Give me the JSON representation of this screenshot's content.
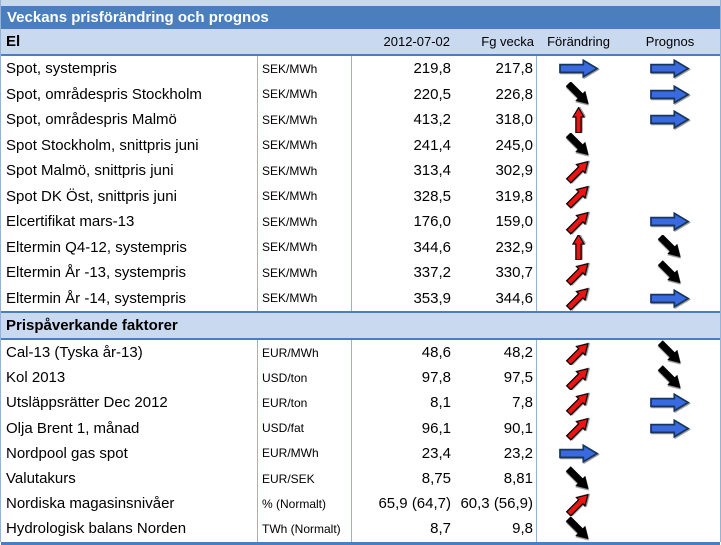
{
  "title": "Veckans prisförändring och prognos",
  "header": {
    "date": "2012-07-02",
    "prev_week": "Fg vecka",
    "change": "Förändring",
    "forecast": "Prognos"
  },
  "sections": [
    {
      "label": "El",
      "rows": [
        {
          "name": "Spot, systempris",
          "unit": "SEK/MWh",
          "current": "219,8",
          "prev": "217,8",
          "change": "flat",
          "forecast": "flat"
        },
        {
          "name": "Spot, områdespris Stockholm",
          "unit": "SEK/MWh",
          "current": "220,5",
          "prev": "226,8",
          "change": "down",
          "forecast": "flat"
        },
        {
          "name": "Spot, områdespris Malmö",
          "unit": "SEK/MWh",
          "current": "413,2",
          "prev": "318,0",
          "change": "up-strong",
          "forecast": "flat"
        },
        {
          "name": "Spot Stockholm, snittpris juni",
          "unit": "SEK/MWh",
          "current": "241,4",
          "prev": "245,0",
          "change": "down",
          "forecast": "none"
        },
        {
          "name": "Spot Malmö, snittpris juni",
          "unit": "SEK/MWh",
          "current": "313,4",
          "prev": "302,9",
          "change": "up",
          "forecast": "none"
        },
        {
          "name": "Spot DK Öst, snittpris juni",
          "unit": "SEK/MWh",
          "current": "328,5",
          "prev": "319,8",
          "change": "up",
          "forecast": "none"
        },
        {
          "name": "Elcertifikat mars-13",
          "unit": "SEK/MWh",
          "current": "176,0",
          "prev": "159,0",
          "change": "up",
          "forecast": "flat"
        },
        {
          "name": "Eltermin Q4-12, systempris",
          "unit": "SEK/MWh",
          "current": "344,6",
          "prev": "232,9",
          "change": "up-strong",
          "forecast": "down"
        },
        {
          "name": "Eltermin År -13, systempris",
          "unit": "SEK/MWh",
          "current": "337,2",
          "prev": "330,7",
          "change": "up",
          "forecast": "down"
        },
        {
          "name": "Eltermin År -14, systempris",
          "unit": "SEK/MWh",
          "current": "353,9",
          "prev": "344,6",
          "change": "up",
          "forecast": "flat"
        }
      ]
    },
    {
      "label": "Prispåverkande faktorer",
      "rows": [
        {
          "name": "Cal-13 (Tyska år-13)",
          "unit": "EUR/MWh",
          "current": "48,6",
          "prev": "48,2",
          "change": "up",
          "forecast": "down"
        },
        {
          "name": "Kol 2013",
          "unit": "USD/ton",
          "current": "97,8",
          "prev": "97,5",
          "change": "up",
          "forecast": "down"
        },
        {
          "name": "Utsläppsrätter Dec 2012",
          "unit": "EUR/ton",
          "current": "8,1",
          "prev": "7,8",
          "change": "up",
          "forecast": "flat"
        },
        {
          "name": "Olja Brent 1, månad",
          "unit": "USD/fat",
          "current": "96,1",
          "prev": "90,1",
          "change": "up",
          "forecast": "flat"
        },
        {
          "name": "Nordpool gas spot",
          "unit": "EUR/MWh",
          "current": "23,4",
          "prev": "23,2",
          "change": "flat",
          "forecast": "none"
        },
        {
          "name": "Valutakurs",
          "unit": "EUR/SEK",
          "current": "8,75",
          "prev": "8,81",
          "change": "down",
          "forecast": "none"
        },
        {
          "name": "Nordiska magasinsnivåer",
          "unit": "% (Normalt)",
          "current": "65,9 (64,7)",
          "prev": "60,3 (56,9)",
          "change": "up",
          "forecast": "none"
        },
        {
          "name": "Hydrologisk balans Norden",
          "unit": "TWh (Normalt)",
          "current": "8,7",
          "prev": "9,8",
          "change": "down",
          "forecast": "none"
        }
      ]
    }
  ],
  "icons": {
    "flat": "trend-flat-icon",
    "up": "trend-up-icon",
    "down": "trend-down-icon",
    "up-strong": "trend-up-strong-icon"
  },
  "colors": {
    "title_bar": "#4a7ebc",
    "band_bg": "#c9d9f0",
    "grid_border": "#95b3d7",
    "arrow_blue": "#3a6ae0",
    "arrow_red": "#ee1414",
    "arrow_black": "#000000"
  }
}
